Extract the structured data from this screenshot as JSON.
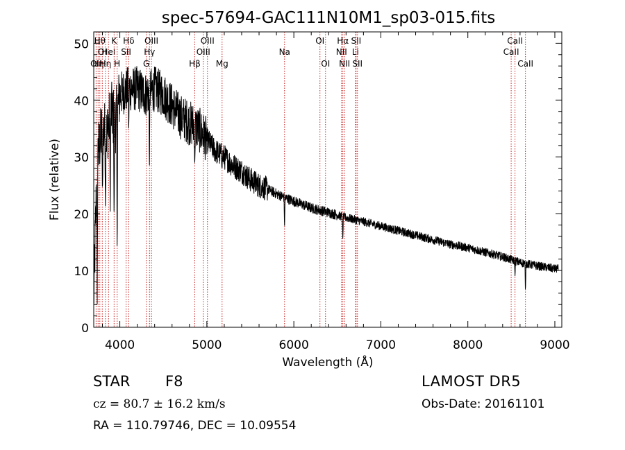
{
  "chart_data": {
    "type": "line",
    "title": "spec-57694-GAC111N10M1_sp03-015.fits",
    "xlabel": "Wavelength (Å)",
    "ylabel": "Flux (relative)",
    "xlim": [
      3700,
      9080
    ],
    "ylim": [
      0,
      52
    ],
    "xticks": [
      4000,
      5000,
      6000,
      7000,
      8000,
      9000
    ],
    "yticks": [
      0,
      10,
      20,
      30,
      40,
      50
    ],
    "line_color": "#000000",
    "marker_color": "#cc2222",
    "continuum": [
      [
        3700,
        5
      ],
      [
        3740,
        30
      ],
      [
        3800,
        35
      ],
      [
        3850,
        34
      ],
      [
        3900,
        38
      ],
      [
        3950,
        36
      ],
      [
        4000,
        41
      ],
      [
        4100,
        42
      ],
      [
        4200,
        42
      ],
      [
        4300,
        41
      ],
      [
        4400,
        42
      ],
      [
        4500,
        41
      ],
      [
        4600,
        39
      ],
      [
        4700,
        37
      ],
      [
        4800,
        36
      ],
      [
        4900,
        35
      ],
      [
        5000,
        33
      ],
      [
        5100,
        31
      ],
      [
        5200,
        30
      ],
      [
        5300,
        28.5
      ],
      [
        5400,
        27.5
      ],
      [
        5500,
        26
      ],
      [
        5600,
        25
      ],
      [
        5700,
        24.3
      ],
      [
        5800,
        23.5
      ],
      [
        5900,
        22.8
      ],
      [
        6000,
        22.2
      ],
      [
        6200,
        21
      ],
      [
        6400,
        20.2
      ],
      [
        6600,
        19.3
      ],
      [
        6800,
        18.6
      ],
      [
        7000,
        17.8
      ],
      [
        7200,
        17
      ],
      [
        7400,
        16.2
      ],
      [
        7600,
        15.4
      ],
      [
        7800,
        14.6
      ],
      [
        8000,
        14
      ],
      [
        8200,
        13.2
      ],
      [
        8400,
        12.4
      ],
      [
        8600,
        11.4
      ],
      [
        8800,
        10.8
      ],
      [
        9000,
        10.3
      ]
    ],
    "features": [
      {
        "x": 3740,
        "y": 2
      },
      {
        "x": 3800,
        "y": 22
      },
      {
        "x": 3835,
        "y": 20
      },
      {
        "x": 3889,
        "y": 20
      },
      {
        "x": 3934,
        "y": 18
      },
      {
        "x": 3969,
        "y": 12
      },
      {
        "x": 4102,
        "y": 34
      },
      {
        "x": 4340,
        "y": 28
      },
      {
        "x": 4861,
        "y": 28
      },
      {
        "x": 5175,
        "y": 28
      },
      {
        "x": 5893,
        "y": 17.5
      },
      {
        "x": 6563,
        "y": 15
      },
      {
        "x": 7605,
        "y": 17
      },
      {
        "x": 8542,
        "y": 9
      },
      {
        "x": 8662,
        "y": 6
      }
    ],
    "lines": [
      {
        "x": 3727,
        "label": "OII",
        "row": 3
      },
      {
        "x": 3750,
        "label": "Hη",
        "row": 3
      },
      {
        "x": 3770,
        "label": "Hθ",
        "row": 1
      },
      {
        "x": 3798,
        "label": "OI",
        "row": 2
      },
      {
        "x": 3835,
        "label": "Hη",
        "row": 3
      },
      {
        "x": 3870,
        "label": "HeI",
        "row": 2
      },
      {
        "x": 3934,
        "label": "K",
        "row": 1
      },
      {
        "x": 3969,
        "label": "H",
        "row": 3
      },
      {
        "x": 4072,
        "label": "SII",
        "row": 2
      },
      {
        "x": 4102,
        "label": "Hδ",
        "row": 1
      },
      {
        "x": 4304,
        "label": "G",
        "row": 3
      },
      {
        "x": 4341,
        "label": "Hγ",
        "row": 2
      },
      {
        "x": 4363,
        "label": "OIII",
        "row": 1
      },
      {
        "x": 4861,
        "label": "Hβ",
        "row": 3
      },
      {
        "x": 4959,
        "label": "OIII",
        "row": 2
      },
      {
        "x": 5007,
        "label": "OIII",
        "row": 1
      },
      {
        "x": 5175,
        "label": "Mg",
        "row": 3
      },
      {
        "x": 5893,
        "label": "Na",
        "row": 2
      },
      {
        "x": 6300,
        "label": "OI",
        "row": 1
      },
      {
        "x": 6364,
        "label": "OI",
        "row": 3
      },
      {
        "x": 6548,
        "label": "NII",
        "row": 2
      },
      {
        "x": 6563,
        "label": "Hα",
        "row": 1
      },
      {
        "x": 6583,
        "label": "NII",
        "row": 3
      },
      {
        "x": 6708,
        "label": "Li",
        "row": 2
      },
      {
        "x": 6716,
        "label": "SII",
        "row": 1
      },
      {
        "x": 6731,
        "label": "SII",
        "row": 3
      },
      {
        "x": 8498,
        "label": "CaII",
        "row": 2
      },
      {
        "x": 8542,
        "label": "CaII",
        "row": 1
      },
      {
        "x": 8662,
        "label": "CaII",
        "row": 3
      }
    ]
  },
  "info": {
    "object_type": "STAR",
    "subclass": "F8",
    "survey": "LAMOST DR5",
    "cz": "cz = 80.7 ± 16.2 km/s",
    "obs_date": "Obs-Date: 20161101",
    "radec": "RA = 110.79746, DEC =  10.09554"
  }
}
